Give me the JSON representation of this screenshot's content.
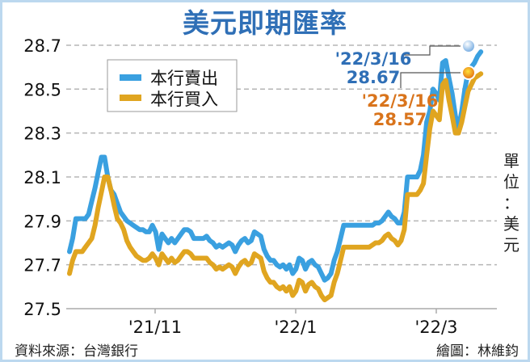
{
  "title": "美元即期匯率",
  "source": "資料來源：台灣銀行",
  "credit": "繪圖：林維鈞",
  "unit": [
    "單",
    "位",
    "：",
    "美",
    "元"
  ],
  "colors": {
    "sell": "#3aa0e0",
    "buy": "#e0a520",
    "title": "#2f6fb6",
    "sell_label": "#2f6fb6",
    "buy_label": "#d9741c",
    "grid": "#b5b5b5"
  },
  "legend": {
    "sell": "本行賣出",
    "buy": "本行買入"
  },
  "annotations": {
    "sell": {
      "date": "'22/3/16",
      "value": "28.67"
    },
    "buy": {
      "date": "'22/3/16",
      "value": "28.57"
    }
  },
  "chart_data": {
    "type": "line",
    "title": "美元即期匯率",
    "xlabel": "",
    "ylabel": "單位：美元",
    "ylim": [
      27.5,
      28.7
    ],
    "yticks": [
      "28.7",
      "28.5",
      "28.3",
      "28.1",
      "27.9",
      "27.7",
      "27.5"
    ],
    "xticks": [
      "'21/11",
      "'22/1",
      "'22/3"
    ],
    "grid": "horizontal dashed",
    "legend_position": "upper left",
    "x": [
      0,
      4,
      8,
      12,
      16,
      20,
      24,
      28,
      32,
      36,
      40,
      44,
      48,
      52,
      56,
      60,
      64,
      68,
      72,
      76,
      80,
      84,
      88,
      92,
      96,
      100,
      104,
      108,
      112,
      116,
      120,
      124,
      128,
      132,
      136,
      140,
      144,
      148,
      152,
      156,
      160,
      164,
      168,
      172,
      176,
      180,
      184,
      188,
      192,
      196,
      200,
      204,
      208,
      212,
      216,
      220,
      224,
      228,
      232,
      236,
      240,
      244,
      248,
      252,
      256,
      260,
      264,
      268,
      272,
      276,
      280,
      284,
      288,
      292,
      296,
      300,
      304,
      308,
      312,
      316,
      320,
      324,
      328,
      332,
      336,
      340,
      344,
      348,
      352,
      356,
      360,
      364,
      368,
      372,
      376,
      380,
      384,
      388,
      392,
      396,
      400,
      404,
      408,
      412,
      416,
      420,
      424,
      428,
      432,
      436,
      440,
      444,
      448,
      452,
      456,
      460,
      464,
      468,
      472,
      476,
      480,
      484,
      488,
      492,
      496,
      500,
      504,
      508,
      512,
      516,
      520,
      524,
      528
    ],
    "series": [
      {
        "name": "本行賣出",
        "values": [
          27.76,
          27.82,
          27.91,
          27.91,
          27.91,
          27.91,
          27.93,
          27.99,
          28.05,
          28.12,
          28.19,
          28.19,
          28.1,
          28.04,
          28.02,
          27.98,
          27.94,
          27.92,
          27.9,
          27.89,
          27.88,
          27.87,
          27.86,
          27.86,
          27.85,
          27.85,
          27.88,
          27.85,
          27.77,
          27.84,
          27.82,
          27.8,
          27.82,
          27.8,
          27.82,
          27.84,
          27.86,
          27.86,
          27.85,
          27.82,
          27.82,
          27.82,
          27.82,
          27.83,
          27.81,
          27.8,
          27.78,
          27.79,
          27.78,
          27.79,
          27.8,
          27.79,
          27.76,
          27.79,
          27.81,
          27.82,
          27.8,
          27.81,
          27.85,
          27.84,
          27.83,
          27.77,
          27.74,
          27.72,
          27.72,
          27.7,
          27.69,
          27.7,
          27.68,
          27.7,
          27.66,
          27.68,
          27.73,
          27.72,
          27.68,
          27.71,
          27.72,
          27.7,
          27.69,
          27.66,
          27.63,
          27.64,
          27.66,
          27.72,
          27.76,
          27.82,
          27.88,
          27.88,
          27.88,
          27.88,
          27.88,
          27.88,
          27.88,
          27.88,
          27.88,
          27.88,
          27.89,
          27.89,
          27.9,
          27.92,
          27.94,
          27.92,
          27.91,
          27.89,
          27.89,
          27.94,
          28.1,
          28.1,
          28.1,
          28.1,
          28.13,
          28.2,
          28.35,
          28.4,
          28.5,
          28.48,
          28.45,
          28.62,
          28.63,
          28.55,
          28.48,
          28.38,
          28.32,
          28.4,
          28.5,
          28.58,
          28.6,
          28.62,
          28.65,
          28.67
        ]
      },
      {
        "name": "本行買入",
        "values": [
          27.66,
          27.72,
          27.76,
          27.76,
          27.76,
          27.78,
          27.8,
          27.82,
          27.88,
          27.96,
          28.03,
          28.1,
          28.1,
          28.04,
          27.97,
          27.91,
          27.89,
          27.86,
          27.81,
          27.78,
          27.76,
          27.74,
          27.73,
          27.72,
          27.72,
          27.73,
          27.75,
          27.73,
          27.7,
          27.75,
          27.73,
          27.71,
          27.73,
          27.71,
          27.72,
          27.74,
          27.76,
          27.76,
          27.75,
          27.73,
          27.73,
          27.73,
          27.73,
          27.73,
          27.71,
          27.7,
          27.68,
          27.69,
          27.68,
          27.69,
          27.7,
          27.69,
          27.66,
          27.69,
          27.71,
          27.72,
          27.7,
          27.71,
          27.75,
          27.74,
          27.73,
          27.67,
          27.64,
          27.62,
          27.62,
          27.6,
          27.59,
          27.6,
          27.58,
          27.6,
          27.56,
          27.58,
          27.63,
          27.62,
          27.58,
          27.61,
          27.62,
          27.6,
          27.59,
          27.56,
          27.54,
          27.55,
          27.56,
          27.62,
          27.66,
          27.72,
          27.78,
          27.78,
          27.78,
          27.78,
          27.78,
          27.78,
          27.78,
          27.78,
          27.78,
          27.79,
          27.8,
          27.8,
          27.81,
          27.83,
          27.84,
          27.82,
          27.81,
          27.79,
          27.81,
          27.86,
          28.02,
          28.02,
          28.02,
          28.02,
          28.04,
          28.07,
          28.2,
          28.32,
          28.4,
          28.38,
          28.36,
          28.52,
          28.54,
          28.45,
          28.38,
          28.3,
          28.3,
          28.35,
          28.42,
          28.49,
          28.52,
          28.55,
          28.56,
          28.57
        ]
      }
    ]
  }
}
